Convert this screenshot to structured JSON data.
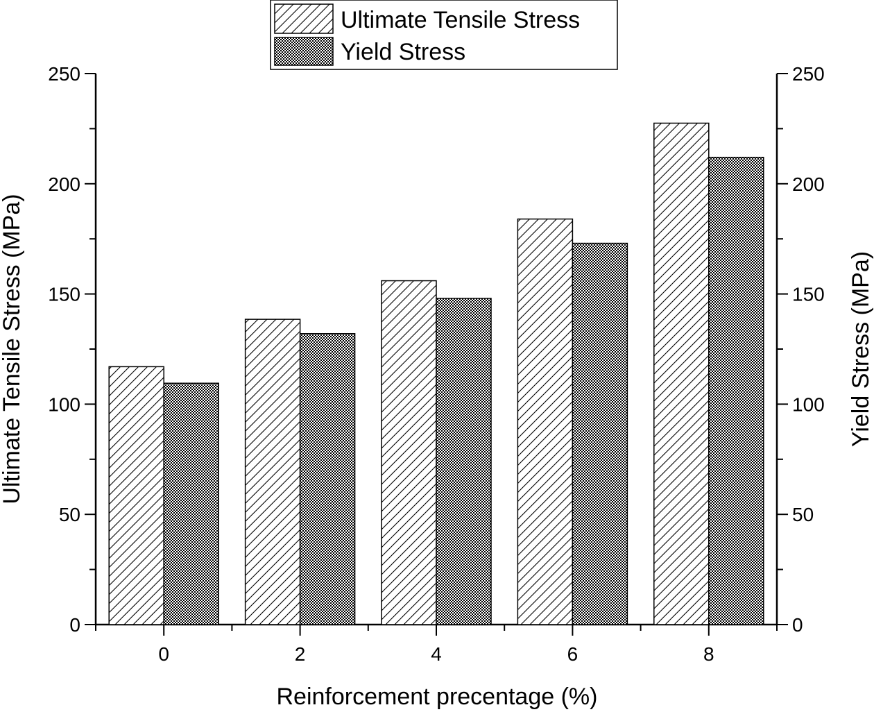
{
  "chart_data": {
    "type": "bar",
    "categories": [
      "0",
      "2",
      "4",
      "6",
      "8"
    ],
    "series": [
      {
        "name": "Ultimate Tensile Stress",
        "values": [
          117,
          138.5,
          156,
          184,
          227.5
        ],
        "pattern": "diagonal-hatch"
      },
      {
        "name": "Yield Stress",
        "values": [
          109.5,
          132,
          148,
          173,
          212
        ],
        "pattern": "crosshatch"
      }
    ],
    "xlabel": "Reinforcement precentage (%)",
    "ylabel": "Ultimate Tensile Stress (MPa)",
    "ylabel_right": "Yield Stress (MPa)",
    "ylim": [
      0,
      250
    ],
    "yticks": [
      "0",
      "50",
      "100",
      "150",
      "200",
      "250"
    ],
    "grid": false,
    "legend_position": "top-center"
  }
}
